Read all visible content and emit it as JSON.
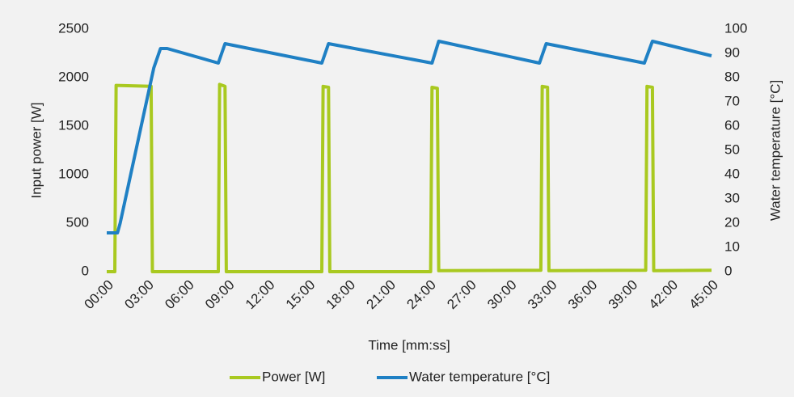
{
  "chart_data": {
    "type": "line",
    "xlabel": "Time [mm:ss]",
    "ylabel": "Input power [W]",
    "y2label": "Water temperature [°C]",
    "xlim": [
      0,
      45
    ],
    "xticks": [
      {
        "value": 0,
        "label": "00:00"
      },
      {
        "value": 3,
        "label": "03:00"
      },
      {
        "value": 6,
        "label": "06:00"
      },
      {
        "value": 9,
        "label": "09:00"
      },
      {
        "value": 12,
        "label": "12:00"
      },
      {
        "value": 15,
        "label": "15:00"
      },
      {
        "value": 18,
        "label": "18:00"
      },
      {
        "value": 21,
        "label": "21:00"
      },
      {
        "value": 24,
        "label": "24:00"
      },
      {
        "value": 27,
        "label": "27:00"
      },
      {
        "value": 30,
        "label": "30:00"
      },
      {
        "value": 33,
        "label": "33:00"
      },
      {
        "value": 36,
        "label": "36:00"
      },
      {
        "value": 39,
        "label": "39:00"
      },
      {
        "value": 42,
        "label": "42:00"
      },
      {
        "value": 45,
        "label": "45:00"
      }
    ],
    "ylim": [
      0,
      2500
    ],
    "yticks": [
      0,
      500,
      1000,
      1500,
      2000,
      2500
    ],
    "y2lim": [
      0,
      100
    ],
    "y2ticks": [
      0,
      10,
      20,
      30,
      40,
      50,
      60,
      70,
      80,
      90,
      100
    ],
    "legend": "bottom",
    "series": [
      {
        "name": "Power [W]",
        "color": "#a9c920",
        "x": [
          0,
          0.6,
          0.7,
          3.3,
          3.4,
          8.3,
          8.4,
          8.8,
          8.9,
          16.0,
          16.1,
          16.5,
          16.6,
          24.1,
          24.2,
          24.6,
          24.7,
          32.3,
          32.4,
          32.8,
          32.9,
          40.1,
          40.2,
          40.6,
          40.7,
          45
        ],
        "values": [
          0,
          0,
          1920,
          1910,
          0,
          0,
          1930,
          1910,
          0,
          0,
          1910,
          1900,
          0,
          0,
          1900,
          1890,
          10,
          15,
          1910,
          1900,
          10,
          15,
          1910,
          1900,
          10,
          15
        ]
      },
      {
        "name": "Water temperature [°C]",
        "color": "#1f80c4",
        "axis": "y2",
        "x": [
          0,
          0.8,
          1.0,
          3.5,
          4.0,
          4.5,
          8.3,
          8.8,
          16.0,
          16.5,
          24.2,
          24.7,
          32.2,
          32.7,
          40.0,
          40.6,
          45
        ],
        "values": [
          16,
          16,
          20,
          84,
          92,
          92,
          86,
          94,
          86,
          94,
          86,
          95,
          86,
          94,
          86,
          95,
          89
        ]
      }
    ]
  }
}
